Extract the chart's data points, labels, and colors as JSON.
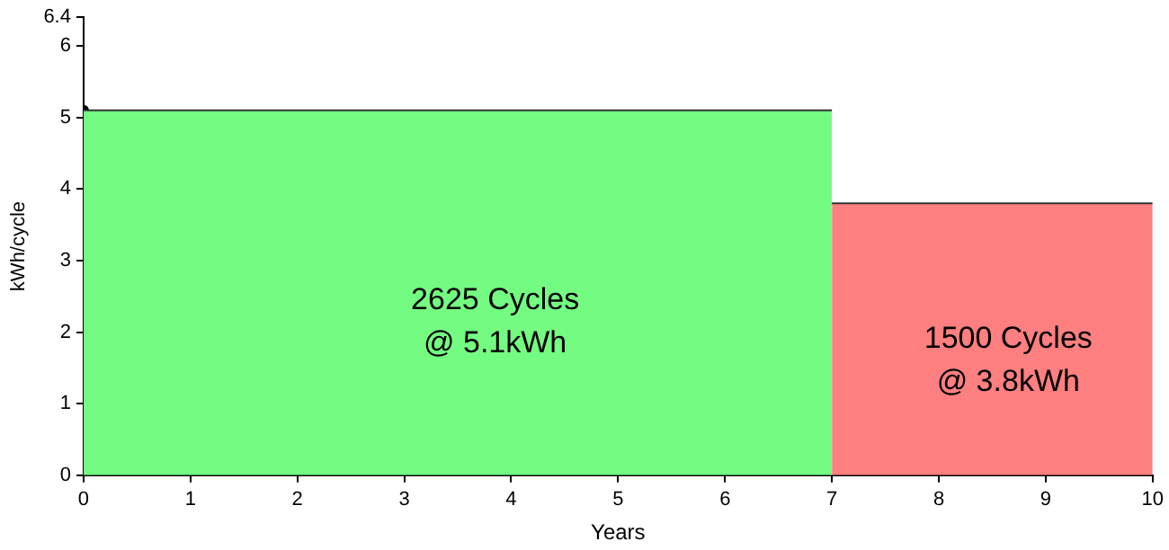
{
  "chart_data": {
    "type": "area",
    "xlabel": "Years",
    "ylabel": "kWh/cycle",
    "xlim": [
      0,
      10
    ],
    "xticks": [
      0,
      1,
      2,
      3,
      4,
      5,
      6,
      7,
      8,
      9,
      10
    ],
    "ylim": [
      0,
      6.4
    ],
    "yticks": [
      0,
      1,
      2,
      3,
      4,
      5,
      6,
      6.4
    ],
    "grid": false,
    "legend": false,
    "series": [
      {
        "color": "#74fc82",
        "x": [
          0,
          7
        ],
        "values": [
          5.1,
          5.1
        ]
      },
      {
        "color": "#fd7f7f",
        "x": [
          7,
          10
        ],
        "values": [
          3.8,
          3.8
        ]
      },
      {
        "type": "scatter",
        "color": "#000000",
        "x": [
          0
        ],
        "values": [
          5.1
        ]
      }
    ],
    "annotations": [
      "2625 Cycles\n@ 5.1kWh",
      "1500 Cycles\n@ 3.8kWh"
    ]
  }
}
